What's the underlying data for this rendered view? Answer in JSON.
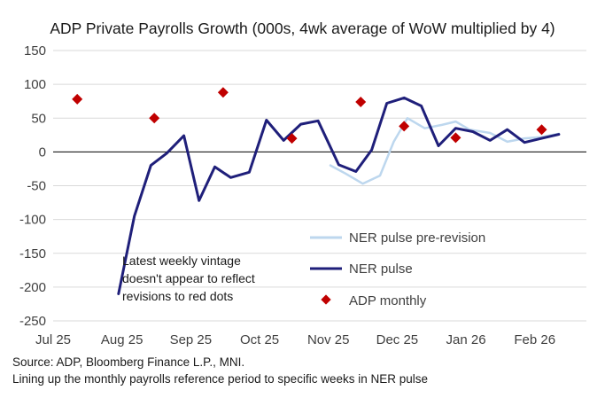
{
  "chart_data": {
    "type": "line",
    "title": "ADP Private Payrolls Growth (000s, 4wk average of WoW multiplied by 4)",
    "xlabel": "",
    "ylabel": "",
    "ylim": [
      -250,
      150
    ],
    "xlim": [
      0,
      7.75
    ],
    "y_ticks": [
      150,
      100,
      50,
      0,
      -50,
      -100,
      -150,
      -200,
      -250
    ],
    "y_tick_labels": [
      "150",
      "100",
      "50",
      "0",
      "-50",
      "-100",
      "-150",
      "-200",
      "-250"
    ],
    "x_ticks": [
      0,
      1,
      2,
      3,
      4,
      5,
      6,
      7
    ],
    "x_tick_labels": [
      "Jul 25",
      "Aug 25",
      "Sep 25",
      "Oct 25",
      "Nov 25",
      "Dec 25",
      "Jan 26",
      "Feb 26"
    ],
    "grid": true,
    "series": [
      {
        "name": "NER pulse pre-revision",
        "color": "#bdd7ee",
        "style": "line",
        "x": [
          4.03,
          4.25,
          4.5,
          4.75,
          4.95,
          5.15,
          5.4,
          5.65,
          5.85,
          6.05,
          6.35,
          6.6,
          6.85,
          7.1,
          7.35
        ],
        "y": [
          -20,
          -32,
          -47,
          -35,
          15,
          50,
          35,
          40,
          45,
          33,
          28,
          15,
          20,
          22,
          27
        ]
      },
      {
        "name": "NER pulse",
        "color": "#1f1f7a",
        "style": "line",
        "x": [
          0.95,
          1.18,
          1.42,
          1.65,
          1.9,
          2.12,
          2.35,
          2.58,
          2.85,
          3.1,
          3.35,
          3.6,
          3.85,
          4.15,
          4.4,
          4.63,
          4.85,
          5.1,
          5.35,
          5.6,
          5.85,
          6.1,
          6.35,
          6.6,
          6.85,
          7.1,
          7.35
        ],
        "y": [
          -210,
          -95,
          -20,
          -2,
          24,
          -72,
          -22,
          -38,
          -30,
          47,
          17,
          41,
          46,
          -19,
          -29,
          3,
          72,
          80,
          68,
          9,
          35,
          30,
          17,
          33,
          14,
          20,
          26
        ]
      },
      {
        "name": "ADP monthly",
        "color": "#c00000",
        "style": "marker",
        "x": [
          0.35,
          1.47,
          2.47,
          3.47,
          4.47,
          5.1,
          5.85,
          7.1
        ],
        "y": [
          78,
          50,
          88,
          20,
          74,
          38,
          21,
          33
        ]
      }
    ],
    "legend": {
      "position": "bottom-right",
      "entries": [
        "NER pulse pre-revision",
        "NER pulse",
        "ADP monthly"
      ]
    },
    "annotations": [
      "Latest weekly vintage",
      "doesn't appear to reflect",
      "revisions to red dots"
    ]
  },
  "footnotes": {
    "source": "Source: ADP, Bloomberg Finance L.P., MNI.",
    "note": "Lining up the monthly payrolls reference period to specific weeks in NER pulse"
  },
  "colors": {
    "grid": "#d9d9d9",
    "zero_axis": "#000000",
    "tick_text": "#404040"
  }
}
